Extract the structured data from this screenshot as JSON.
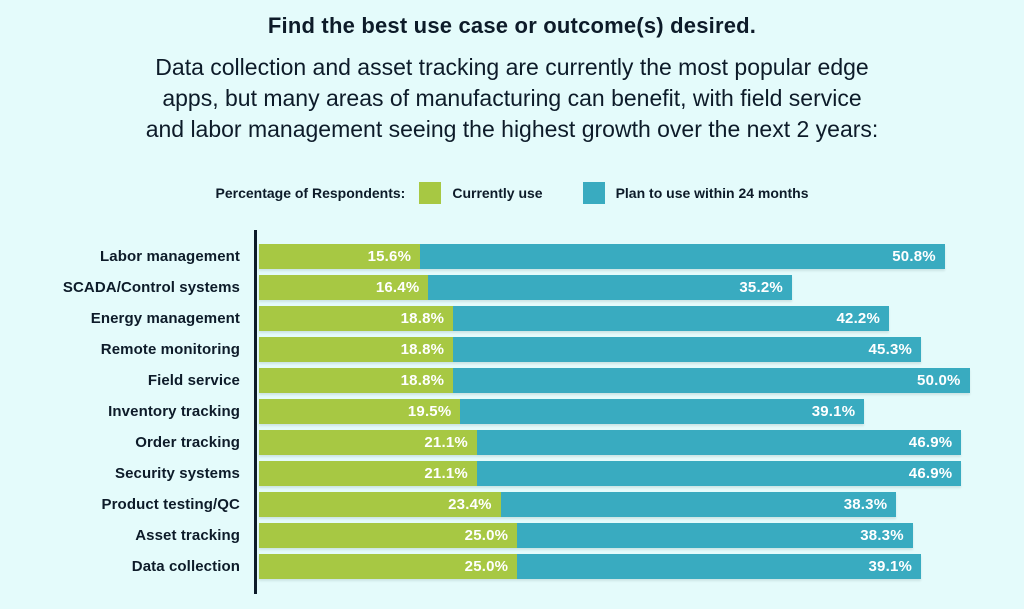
{
  "page": {
    "background": "#e4fbfb",
    "text_color": "#0d1b29"
  },
  "header": {
    "title": "Find the best use case or outcome(s) desired.",
    "subtitle": "Data collection and asset tracking are currently the most popular edge\napps, but many areas of manufacturing can benefit, with field service\nand labor management seeing the highest growth over the next 2 years:"
  },
  "legend": {
    "label": "Percentage of Respondents:",
    "items": [
      {
        "label": "Currently use",
        "color": "#a7c843"
      },
      {
        "label": "Plan to use within 24 months",
        "color": "#39abc0"
      }
    ]
  },
  "chart_data": {
    "type": "bar",
    "orientation": "horizontal",
    "stacked": true,
    "title": "Find the best use case or outcome(s) desired.",
    "xlabel": "Percentage of Respondents",
    "ylabel": "",
    "xlim": [
      0,
      70
    ],
    "grid": false,
    "legend_position": "top",
    "categories": [
      "Labor management",
      "SCADA/Control systems",
      "Energy management",
      "Remote monitoring",
      "Field service",
      "Inventory tracking",
      "Order tracking",
      "Security systems",
      "Product testing/QC",
      "Asset tracking",
      "Data collection"
    ],
    "series": [
      {
        "name": "Currently use",
        "color": "#a7c843",
        "values": [
          15.6,
          16.4,
          18.8,
          18.8,
          18.8,
          19.5,
          21.1,
          21.1,
          23.4,
          25.0,
          25.0
        ]
      },
      {
        "name": "Plan to use within 24 months",
        "color": "#39abc0",
        "values": [
          50.8,
          35.2,
          42.2,
          45.3,
          50.0,
          39.1,
          46.9,
          46.9,
          38.3,
          38.3,
          39.1
        ]
      }
    ],
    "value_labels": "inside-right, one decimal, percent sign"
  }
}
